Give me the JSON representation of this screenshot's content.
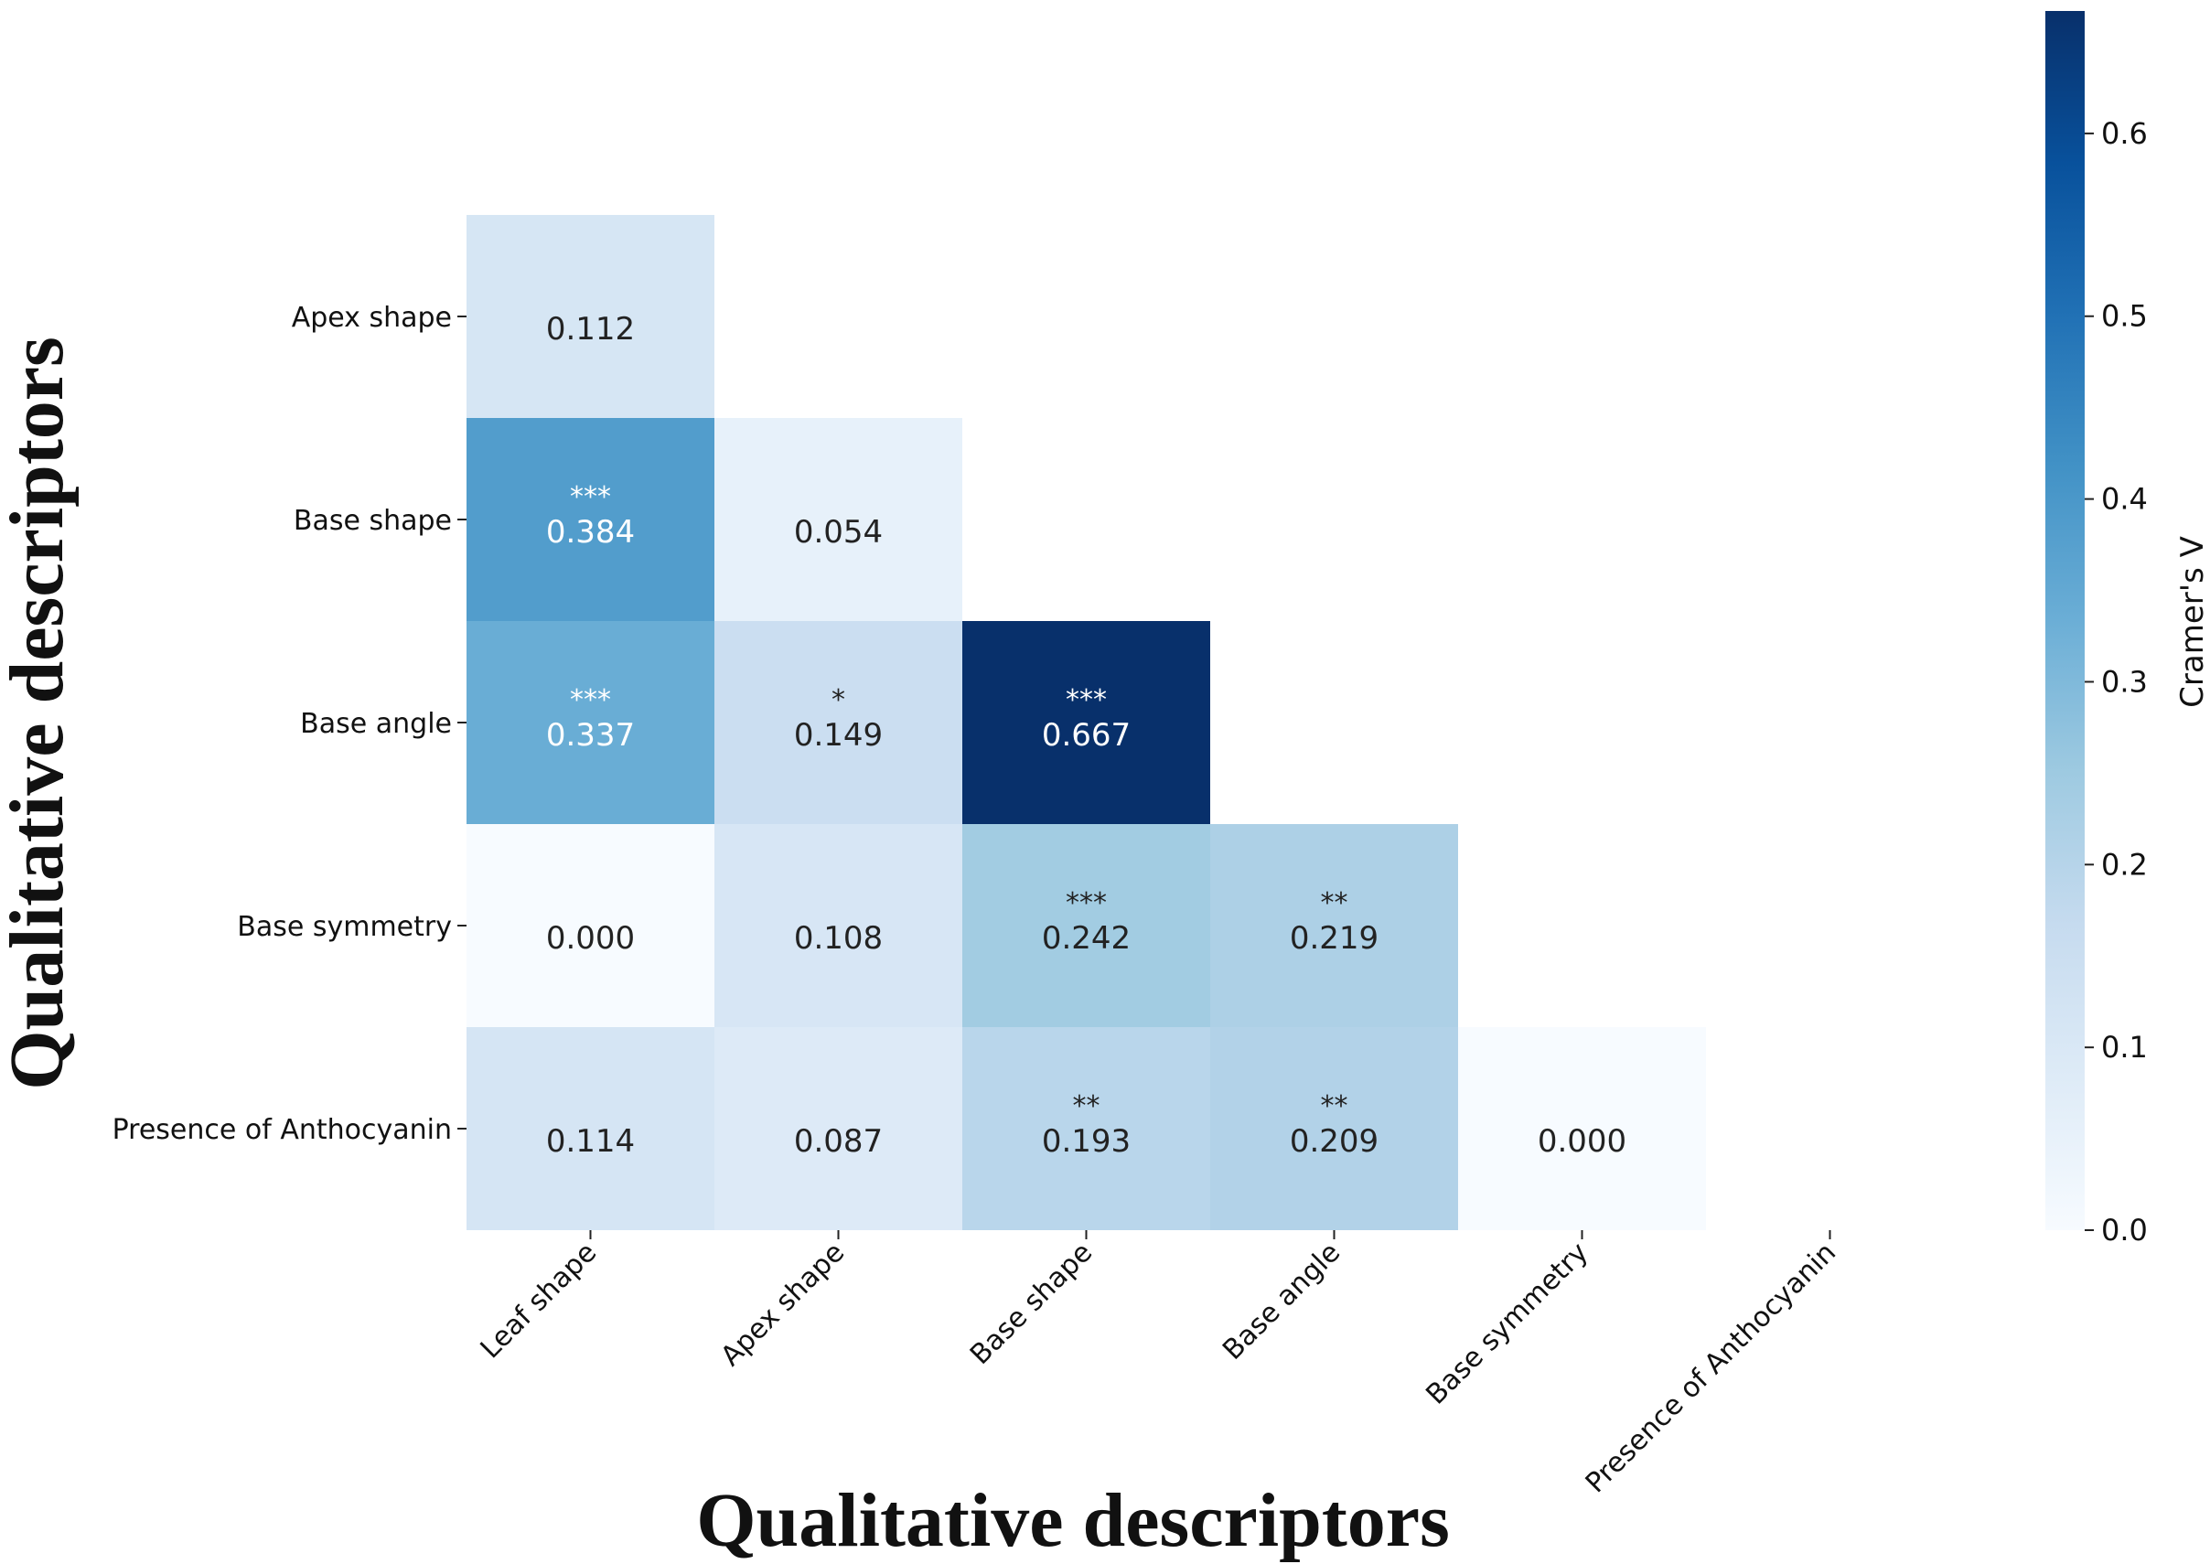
{
  "chart_data": {
    "type": "heatmap",
    "xlabel": "Qualitative descriptors",
    "ylabel": "Qualitative descriptors",
    "x_categories": [
      "Leaf shape",
      "Apex shape",
      "Base shape",
      "Base angle",
      "Base symmetry",
      "Presence of Anthocyanin"
    ],
    "y_categories": [
      "Apex shape",
      "Base shape",
      "Base angle",
      "Base symmetry",
      "Presence of Anthocyanin"
    ],
    "cells": [
      {
        "row": 0,
        "col": 0,
        "value": 0.112,
        "label": "0.112",
        "stars": ""
      },
      {
        "row": 1,
        "col": 0,
        "value": 0.384,
        "label": "0.384",
        "stars": "***"
      },
      {
        "row": 1,
        "col": 1,
        "value": 0.054,
        "label": "0.054",
        "stars": ""
      },
      {
        "row": 2,
        "col": 0,
        "value": 0.337,
        "label": "0.337",
        "stars": "***"
      },
      {
        "row": 2,
        "col": 1,
        "value": 0.149,
        "label": "0.149",
        "stars": "*"
      },
      {
        "row": 2,
        "col": 2,
        "value": 0.667,
        "label": "0.667",
        "stars": "***"
      },
      {
        "row": 3,
        "col": 0,
        "value": 0.0,
        "label": "0.000",
        "stars": ""
      },
      {
        "row": 3,
        "col": 1,
        "value": 0.108,
        "label": "0.108",
        "stars": ""
      },
      {
        "row": 3,
        "col": 2,
        "value": 0.242,
        "label": "0.242",
        "stars": "***"
      },
      {
        "row": 3,
        "col": 3,
        "value": 0.219,
        "label": "0.219",
        "stars": "**"
      },
      {
        "row": 4,
        "col": 0,
        "value": 0.114,
        "label": "0.114",
        "stars": ""
      },
      {
        "row": 4,
        "col": 1,
        "value": 0.087,
        "label": "0.087",
        "stars": ""
      },
      {
        "row": 4,
        "col": 2,
        "value": 0.193,
        "label": "0.193",
        "stars": "**"
      },
      {
        "row": 4,
        "col": 3,
        "value": 0.209,
        "label": "0.209",
        "stars": "**"
      },
      {
        "row": 4,
        "col": 4,
        "value": 0.0,
        "label": "0.000",
        "stars": ""
      }
    ],
    "colorbar": {
      "label": "Cramer's V",
      "min": 0.0,
      "max": 0.667,
      "ticks": [
        "0.0",
        "0.1",
        "0.2",
        "0.3",
        "0.4",
        "0.5",
        "0.6"
      ],
      "colormap": "Blues",
      "stops": [
        "#f7fbff",
        "#deebf7",
        "#c6dbef",
        "#9ecae1",
        "#6baed6",
        "#4292c6",
        "#2171b5",
        "#08519c",
        "#08306b"
      ]
    },
    "grid": false
  }
}
